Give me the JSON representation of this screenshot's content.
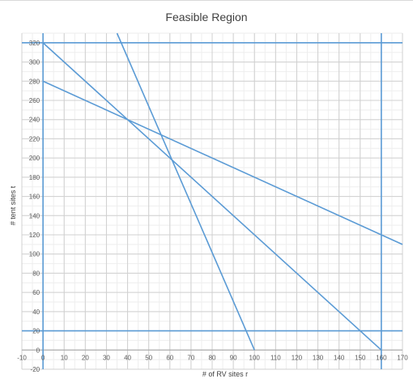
{
  "chart_data": {
    "type": "line",
    "title": "Feasible Region",
    "xlabel": "# of RV sites r",
    "ylabel": "# tent sites t",
    "xlim": [
      -10,
      170
    ],
    "ylim": [
      -20,
      330
    ],
    "x_ticks": [
      -10,
      0,
      10,
      20,
      30,
      40,
      50,
      60,
      70,
      80,
      90,
      100,
      110,
      120,
      130,
      140,
      150,
      160,
      170
    ],
    "y_ticks": [
      -20,
      0,
      20,
      40,
      60,
      80,
      100,
      120,
      140,
      160,
      180,
      200,
      220,
      240,
      260,
      280,
      300,
      320
    ],
    "grid": true,
    "legend": "none",
    "line_color": "#5b9bd5",
    "series": [
      {
        "x": [
          -10,
          170
        ],
        "y": [
          320,
          320
        ]
      },
      {
        "x": [
          -10,
          170
        ],
        "y": [
          20,
          20
        ]
      },
      {
        "x": [
          0,
          0
        ],
        "y": [
          -20,
          330
        ]
      },
      {
        "x": [
          160,
          160
        ],
        "y": [
          -20,
          330
        ]
      },
      {
        "x": [
          0,
          160
        ],
        "y": [
          320,
          0
        ]
      },
      {
        "x": [
          0,
          170
        ],
        "y": [
          280,
          110
        ]
      },
      {
        "x": [
          35,
          100
        ],
        "y": [
          330,
          0
        ]
      }
    ]
  }
}
